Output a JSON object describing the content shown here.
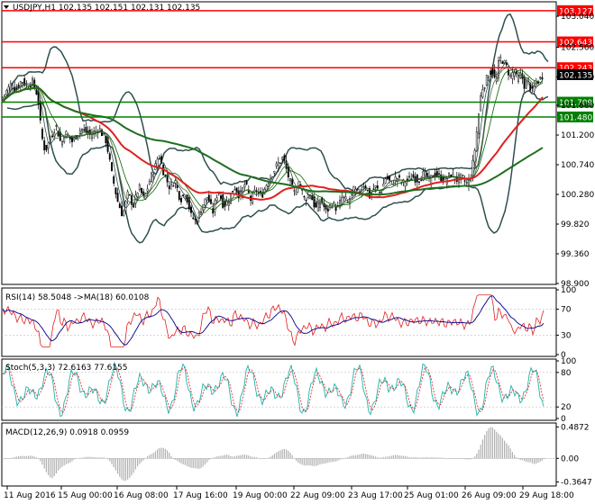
{
  "chart_data": [
    {
      "type": "candlestick",
      "panel": "price",
      "header": "USDJPY,H1  102.135 102.151 102.131 102.135",
      "yticks": [
        "103.040",
        "102.560",
        "102.100",
        "101.660",
        "101.200",
        "100.740",
        "100.280",
        "99.820",
        "99.360",
        "98.900"
      ],
      "y_tick_values": [
        103.04,
        102.56,
        102.1,
        101.66,
        101.2,
        100.74,
        100.28,
        99.82,
        99.36,
        98.9
      ],
      "ylim": [
        98.9,
        103.25
      ],
      "current_price": {
        "label": "102.135",
        "value": 102.135
      },
      "levels": [
        {
          "label": "103.127",
          "value": 103.127,
          "color": "#ff0000"
        },
        {
          "label": "102.643",
          "value": 102.643,
          "color": "#ff0000"
        },
        {
          "label": "102.243",
          "value": 102.243,
          "color": "#ff0000"
        },
        {
          "label": "101.709",
          "value": 101.709,
          "color": "#008000"
        },
        {
          "label": "101.480",
          "value": 101.48,
          "color": "#008000"
        }
      ],
      "xticks": [
        "11 Aug 2016",
        "15 Aug 00:00",
        "16 Aug 08:00",
        "17 Aug 16:00",
        "19 Aug 00:00",
        "22 Aug 09:00",
        "23 Aug 17:00",
        "25 Aug 01:00",
        "26 Aug 09:00",
        "29 Aug 18:00"
      ],
      "close_path": [
        [
          0,
          101.72
        ],
        [
          6,
          101.85
        ],
        [
          12,
          101.98
        ],
        [
          18,
          101.9
        ],
        [
          24,
          102.05
        ],
        [
          30,
          101.95
        ],
        [
          36,
          102.02
        ],
        [
          42,
          101.8
        ],
        [
          46,
          101.2
        ],
        [
          50,
          100.95
        ],
        [
          56,
          101.15
        ],
        [
          62,
          101.35
        ],
        [
          68,
          101.05
        ],
        [
          72,
          101.25
        ],
        [
          80,
          101.1
        ],
        [
          90,
          101.3
        ],
        [
          100,
          101.2
        ],
        [
          110,
          101.3
        ],
        [
          118,
          101.1
        ],
        [
          124,
          100.6
        ],
        [
          130,
          100.2
        ],
        [
          136,
          99.95
        ],
        [
          142,
          100.3
        ],
        [
          148,
          100.1
        ],
        [
          154,
          100.4
        ],
        [
          160,
          100.2
        ],
        [
          166,
          100.5
        ],
        [
          172,
          100.7
        ],
        [
          176,
          100.9
        ],
        [
          182,
          100.6
        ],
        [
          188,
          100.4
        ],
        [
          194,
          100.5
        ],
        [
          200,
          100.2
        ],
        [
          206,
          100.3
        ],
        [
          212,
          99.95
        ],
        [
          218,
          99.85
        ],
        [
          224,
          100.1
        ],
        [
          230,
          100.25
        ],
        [
          236,
          100.0
        ],
        [
          242,
          100.35
        ],
        [
          248,
          100.1
        ],
        [
          254,
          100.2
        ],
        [
          260,
          100.4
        ],
        [
          266,
          100.25
        ],
        [
          272,
          100.45
        ],
        [
          278,
          100.2
        ],
        [
          284,
          100.35
        ],
        [
          290,
          100.25
        ],
        [
          296,
          100.45
        ],
        [
          302,
          100.6
        ],
        [
          308,
          100.75
        ],
        [
          314,
          100.85
        ],
        [
          320,
          100.55
        ],
        [
          326,
          100.3
        ],
        [
          332,
          100.45
        ],
        [
          338,
          100.2
        ],
        [
          344,
          100.3
        ],
        [
          350,
          100.05
        ],
        [
          356,
          100.2
        ],
        [
          362,
          100.0
        ],
        [
          368,
          100.15
        ],
        [
          374,
          100.05
        ],
        [
          380,
          100.25
        ],
        [
          386,
          100.15
        ],
        [
          392,
          100.35
        ],
        [
          398,
          100.3
        ],
        [
          404,
          100.45
        ],
        [
          410,
          100.25
        ],
        [
          416,
          100.4
        ],
        [
          422,
          100.3
        ],
        [
          428,
          100.55
        ],
        [
          434,
          100.45
        ],
        [
          440,
          100.55
        ],
        [
          446,
          100.45
        ],
        [
          452,
          100.5
        ],
        [
          458,
          100.55
        ],
        [
          464,
          100.5
        ],
        [
          470,
          100.6
        ],
        [
          476,
          100.5
        ],
        [
          482,
          100.6
        ],
        [
          488,
          100.55
        ],
        [
          494,
          100.5
        ],
        [
          500,
          100.6
        ],
        [
          506,
          100.5
        ],
        [
          512,
          100.55
        ],
        [
          518,
          100.45
        ],
        [
          522,
          100.55
        ],
        [
          526,
          100.9
        ],
        [
          530,
          101.4
        ],
        [
          534,
          101.9
        ],
        [
          538,
          102.0
        ],
        [
          542,
          102.15
        ],
        [
          546,
          102.2
        ],
        [
          550,
          102.0
        ],
        [
          554,
          102.4
        ],
        [
          558,
          102.35
        ],
        [
          562,
          102.25
        ],
        [
          566,
          102.1
        ],
        [
          570,
          102.2
        ],
        [
          574,
          102.05
        ],
        [
          578,
          102.15
        ],
        [
          582,
          101.95
        ],
        [
          586,
          102.05
        ],
        [
          590,
          101.85
        ],
        [
          594,
          102.0
        ],
        [
          598,
          102.05
        ],
        [
          602,
          102.13
        ]
      ]
    },
    {
      "type": "line",
      "panel": "rsi",
      "header": "RSI(14) 58.5048  ->MA(18) 60.0108",
      "yticks": [
        "100",
        "70",
        "30",
        "0"
      ],
      "y_tick_values": [
        100,
        70,
        30,
        0
      ],
      "ylim": [
        0,
        100
      ]
    },
    {
      "type": "line",
      "panel": "stoch",
      "header": "Stoch(5,3,3) 72.6163 77.6155",
      "yticks": [
        "100",
        "80",
        "20",
        "0"
      ],
      "y_tick_values": [
        100,
        80,
        20,
        0
      ],
      "ylim": [
        0,
        100
      ]
    },
    {
      "type": "bar",
      "panel": "macd",
      "header": "MACD(12,26,9) 0.0918 0.0959",
      "yticks": [
        "0.4872",
        "0.00",
        "-0.3647"
      ],
      "y_tick_values": [
        0.4872,
        0,
        -0.3647
      ],
      "ylim": [
        -0.4,
        0.52
      ]
    }
  ]
}
